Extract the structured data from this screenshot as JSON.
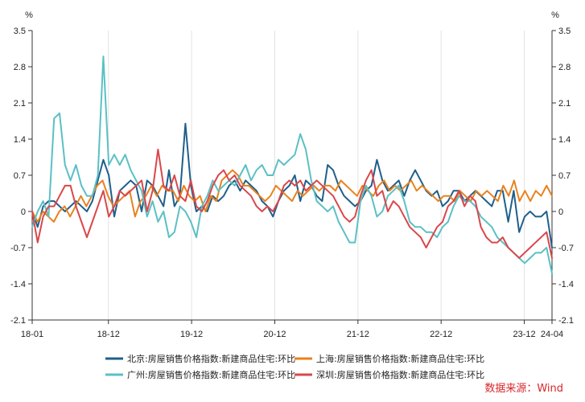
{
  "chart_data": {
    "type": "line",
    "unit_left": "%",
    "unit_right": "%",
    "y_ticks": [
      "3.5",
      "2.8",
      "2.1",
      "1.4",
      "0.7",
      "0",
      "-0.7",
      "-1.4",
      "-2.1"
    ],
    "ylim": [
      -2.1,
      3.5
    ],
    "x_start": "2018-01",
    "x_end": "2024-04",
    "x_ticks": [
      {
        "label": "18-01",
        "date": "2018-01"
      },
      {
        "label": "18-12",
        "date": "2018-12"
      },
      {
        "label": "19-12",
        "date": "2019-12"
      },
      {
        "label": "20-12",
        "date": "2020-12"
      },
      {
        "label": "21-12",
        "date": "2021-12"
      },
      {
        "label": "22-12",
        "date": "2022-12"
      },
      {
        "label": "23-12",
        "date": "2023-12"
      },
      {
        "label": "24-04",
        "date": "2024-04"
      }
    ],
    "grid": "vertical",
    "legend_position": "bottom",
    "series": [
      {
        "name": "北京:房屋销售价格指数:新建商品住宅:环比",
        "color": "#1f5f8b",
        "values": [
          0.0,
          -0.3,
          0.1,
          0.2,
          0.2,
          0.1,
          0.0,
          0.1,
          0.2,
          0.1,
          0.0,
          0.2,
          0.6,
          1.0,
          0.7,
          -0.1,
          0.4,
          0.5,
          0.6,
          0.5,
          0.0,
          0.6,
          0.5,
          0.3,
          0.1,
          0.8,
          0.1,
          0.3,
          1.7,
          0.5,
          0.0,
          0.1,
          0.0,
          0.3,
          0.2,
          0.3,
          0.5,
          0.6,
          0.4,
          0.6,
          0.5,
          0.4,
          0.2,
          0.1,
          -0.1,
          0.2,
          0.4,
          0.5,
          0.7,
          0.2,
          0.6,
          0.5,
          0.3,
          0.2,
          0.9,
          0.8,
          0.5,
          0.3,
          0.2,
          0.1,
          0.2,
          0.4,
          0.5,
          1.0,
          0.6,
          0.4,
          0.5,
          0.6,
          0.3,
          0.6,
          0.8,
          0.6,
          0.4,
          0.3,
          0.4,
          0.1,
          0.2,
          0.4,
          0.4,
          0.2,
          0.3,
          0.4,
          0.3,
          0.2,
          0.1,
          0.4,
          0.4,
          -0.2,
          0.4,
          -0.4,
          -0.1,
          0.0,
          -0.1,
          -0.1,
          0.0,
          -0.7
        ]
      },
      {
        "name": "上海:房屋销售价格指数:新建商品住宅:环比",
        "color": "#e8821e",
        "values": [
          0.0,
          -0.2,
          0.0,
          -0.1,
          -0.2,
          0.0,
          0.1,
          -0.1,
          0.1,
          0.3,
          0.1,
          0.3,
          0.5,
          0.6,
          0.3,
          0.1,
          0.2,
          0.3,
          0.4,
          -0.1,
          0.2,
          0.3,
          0.5,
          0.3,
          0.5,
          0.4,
          0.4,
          0.2,
          0.5,
          0.3,
          0.2,
          0.3,
          0.0,
          0.3,
          0.2,
          0.6,
          0.7,
          0.8,
          0.7,
          0.5,
          0.5,
          0.4,
          0.3,
          0.2,
          0.3,
          0.5,
          0.4,
          0.3,
          0.2,
          0.4,
          0.3,
          0.4,
          0.5,
          0.4,
          0.5,
          0.5,
          0.4,
          0.6,
          0.5,
          0.4,
          0.3,
          0.5,
          0.4,
          0.3,
          0.5,
          0.6,
          0.4,
          0.5,
          0.4,
          0.5,
          0.6,
          0.4,
          0.5,
          0.4,
          0.3,
          0.2,
          0.3,
          0.3,
          0.2,
          0.4,
          0.3,
          0.2,
          0.4,
          0.3,
          0.4,
          0.3,
          0.2,
          0.5,
          0.3,
          0.6,
          0.2,
          0.4,
          0.2,
          0.4,
          0.3,
          0.5,
          0.3
        ]
      },
      {
        "name": "广州:房屋销售价格指数:新建商品住宅:环比",
        "color": "#5bc0c4",
        "values": [
          -0.3,
          0.0,
          0.2,
          -0.1,
          1.8,
          1.9,
          0.9,
          0.6,
          0.9,
          0.5,
          0.3,
          0.3,
          0.7,
          3.0,
          0.9,
          1.1,
          0.9,
          1.1,
          0.8,
          0.6,
          0.4,
          -0.1,
          0.2,
          -0.2,
          0.0,
          -0.5,
          -0.4,
          0.1,
          0.0,
          -0.2,
          -0.5,
          0.1,
          0.3,
          0.6,
          0.4,
          0.5,
          0.6,
          0.5,
          0.7,
          0.9,
          0.6,
          0.8,
          0.9,
          0.7,
          0.7,
          1.0,
          0.9,
          1.0,
          1.1,
          1.5,
          1.2,
          0.6,
          0.2,
          0.1,
          0.0,
          0.1,
          -0.2,
          -0.4,
          -0.6,
          -0.6,
          0.2,
          0.5,
          0.3,
          -0.1,
          0.0,
          0.3,
          0.4,
          0.5,
          0.2,
          -0.2,
          -0.3,
          -0.3,
          -0.4,
          -0.4,
          -0.5,
          -0.3,
          -0.2,
          0.1,
          0.3,
          0.2,
          0.2,
          0.1,
          -0.1,
          -0.2,
          -0.3,
          -0.5,
          -0.6,
          -0.7,
          -0.8,
          -0.9,
          -1.0,
          -0.9,
          -0.8,
          -0.8,
          -0.7,
          -1.2
        ]
      },
      {
        "name": "深圳:房屋销售价格指数:新建商品住宅:环比",
        "color": "#d9474b",
        "values": [
          0.0,
          -0.6,
          -0.1,
          0.1,
          0.1,
          0.3,
          0.5,
          0.5,
          0.1,
          -0.2,
          -0.5,
          -0.2,
          0.1,
          0.4,
          -0.1,
          0.1,
          0.4,
          0.3,
          0.4,
          0.5,
          0.6,
          0.0,
          0.4,
          1.2,
          0.5,
          0.4,
          0.7,
          0.3,
          0.2,
          0.6,
          0.1,
          0.0,
          0.2,
          0.5,
          0.7,
          0.8,
          0.6,
          0.7,
          0.5,
          0.4,
          0.3,
          0.1,
          0.0,
          0.1,
          0.0,
          0.2,
          0.5,
          0.6,
          0.5,
          0.6,
          0.4,
          0.5,
          0.6,
          0.5,
          0.4,
          0.3,
          0.1,
          -0.1,
          -0.2,
          -0.1,
          0.3,
          0.6,
          0.8,
          0.3,
          0.4,
          0.0,
          0.2,
          0.1,
          -0.1,
          -0.3,
          -0.4,
          -0.5,
          -0.7,
          -0.5,
          -0.3,
          -0.2,
          0.1,
          0.2,
          0.4,
          0.1,
          0.3,
          0.2,
          -0.3,
          -0.5,
          -0.6,
          -0.6,
          -0.5,
          -0.7,
          -0.8,
          -0.9,
          -0.8,
          -0.7,
          -0.6,
          -0.5,
          -0.4,
          -0.9
        ]
      }
    ]
  },
  "source": "数据来源：Wind"
}
